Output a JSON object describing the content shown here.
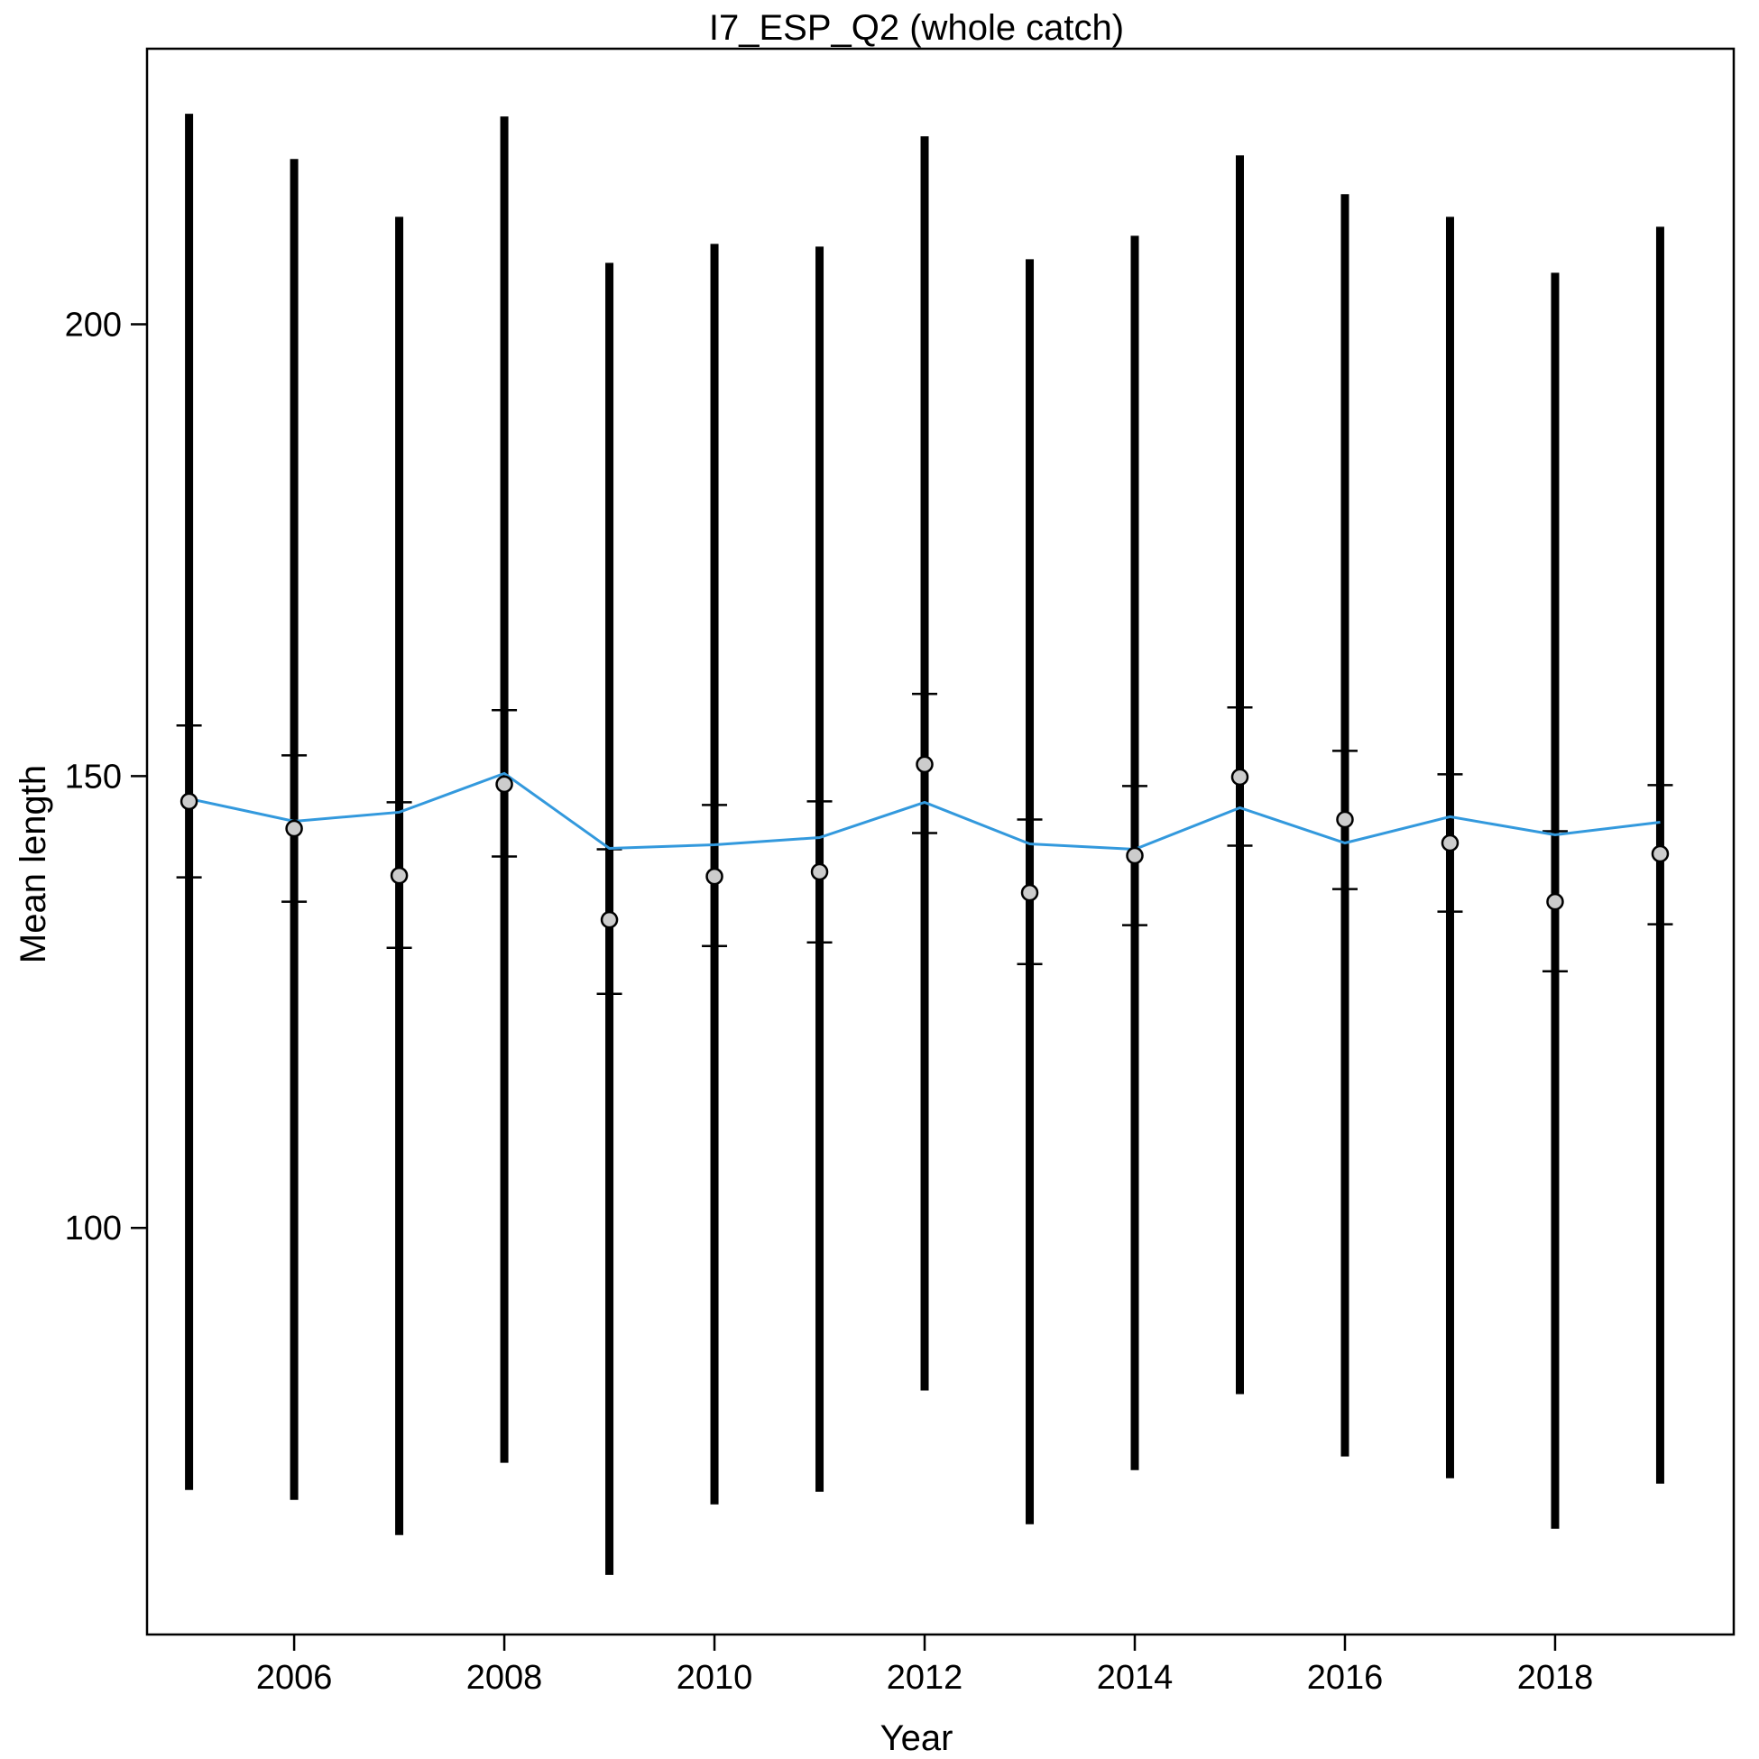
{
  "chart_data": {
    "type": "scatter",
    "title": "I7_ESP_Q2 (whole catch)",
    "xlabel": "Year",
    "ylabel": "Mean length",
    "xlim": [
      2004.6,
      2019.7
    ],
    "ylim": [
      55,
      230.5
    ],
    "x_ticks": [
      2006,
      2008,
      2010,
      2012,
      2014,
      2016,
      2018
    ],
    "y_ticks": [
      100,
      150,
      200
    ],
    "grid": false,
    "colors": {
      "observed_point": "#cccccc",
      "expected_line": "#3399dd",
      "interval": "#000000"
    },
    "years": [
      2005,
      2006,
      2007,
      2008,
      2009,
      2010,
      2011,
      2012,
      2013,
      2014,
      2015,
      2016,
      2017,
      2018,
      2019
    ],
    "observed": [
      147.2,
      144.2,
      139.0,
      149.1,
      134.1,
      138.9,
      139.4,
      151.3,
      137.1,
      141.2,
      149.9,
      145.2,
      142.6,
      136.1,
      141.4
    ],
    "expected": [
      147.5,
      145.0,
      146.0,
      150.3,
      142.0,
      142.4,
      143.2,
      147.1,
      142.5,
      141.9,
      146.5,
      142.6,
      145.5,
      143.5,
      144.9
    ],
    "interval_inner_lower": [
      138.8,
      136.1,
      131.0,
      141.1,
      125.9,
      131.2,
      131.6,
      143.7,
      129.2,
      133.5,
      142.3,
      137.5,
      135.0,
      128.4,
      133.6
    ],
    "interval_inner_upper": [
      155.6,
      152.3,
      147.1,
      157.3,
      141.9,
      146.8,
      147.2,
      159.1,
      145.2,
      148.9,
      157.6,
      152.8,
      150.2,
      143.9,
      149.0
    ],
    "interval_outer_lower": [
      71.0,
      69.9,
      66.0,
      74.0,
      61.6,
      69.4,
      70.8,
      82.0,
      67.2,
      73.2,
      81.6,
      74.7,
      72.3,
      66.7,
      71.7
    ],
    "interval_outer_upper": [
      223.3,
      218.3,
      211.9,
      223.0,
      206.8,
      208.9,
      208.6,
      220.8,
      207.2,
      209.8,
      218.7,
      214.4,
      211.9,
      205.7,
      210.8
    ]
  }
}
